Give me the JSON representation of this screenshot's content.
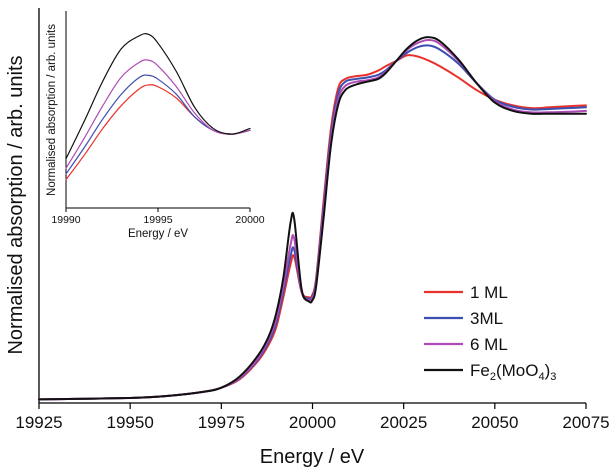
{
  "chart_data": [
    {
      "type": "line",
      "title": "",
      "xlabel": "Energy / eV",
      "ylabel": "Normalised absorption / arb. units",
      "xlim": [
        19925,
        20075
      ],
      "ylim": [
        0,
        1.42
      ],
      "xticks": [
        "19925",
        "19950",
        "19975",
        "20000",
        "20025",
        "20050",
        "20075"
      ],
      "grid": false,
      "legend_position": "bottom-right",
      "colors": {
        "1 ML": "#e8312a",
        "3ML": "#3b4fb0",
        "6 ML": "#b04ab5",
        "Fe2(MoO4)3": "#111111"
      },
      "series": [
        {
          "name": "1 ML",
          "color": "#e8312a",
          "x": [
            19925,
            19950,
            19960,
            19970,
            19975,
            19980,
            19985,
            19988,
            19990,
            19992,
            19994,
            19995,
            19997,
            19999,
            20000,
            20001,
            20003,
            20005,
            20007,
            20009,
            20012,
            20015,
            20018,
            20020,
            20023,
            20026,
            20029,
            20032,
            20035,
            20040,
            20045,
            20050,
            20055,
            20060,
            20065,
            20070,
            20075
          ],
          "y": [
            0.013,
            0.018,
            0.025,
            0.04,
            0.055,
            0.085,
            0.15,
            0.21,
            0.27,
            0.38,
            0.5,
            0.525,
            0.4,
            0.38,
            0.39,
            0.45,
            0.72,
            0.98,
            1.13,
            1.165,
            1.175,
            1.18,
            1.195,
            1.21,
            1.23,
            1.25,
            1.245,
            1.23,
            1.21,
            1.17,
            1.125,
            1.09,
            1.07,
            1.06,
            1.063,
            1.067,
            1.07
          ]
        },
        {
          "name": "3ML",
          "color": "#3b4fb0",
          "x": [
            19925,
            19950,
            19960,
            19970,
            19975,
            19980,
            19985,
            19988,
            19990,
            19992,
            19994,
            19995,
            19997,
            19999,
            20000,
            20001,
            20003,
            20005,
            20007,
            20009,
            20012,
            20015,
            20018,
            20020,
            20023,
            20026,
            20029,
            20032,
            20035,
            20040,
            20045,
            20050,
            20055,
            20060,
            20065,
            20070,
            20075
          ],
          "y": [
            0.013,
            0.018,
            0.025,
            0.04,
            0.055,
            0.088,
            0.155,
            0.22,
            0.285,
            0.4,
            0.53,
            0.55,
            0.4,
            0.375,
            0.385,
            0.44,
            0.7,
            0.96,
            1.11,
            1.155,
            1.165,
            1.17,
            1.18,
            1.195,
            1.23,
            1.26,
            1.28,
            1.285,
            1.27,
            1.22,
            1.15,
            1.09,
            1.065,
            1.055,
            1.057,
            1.06,
            1.063
          ]
        },
        {
          "name": "6 ML",
          "color": "#b04ab5",
          "x": [
            19925,
            19950,
            19960,
            19970,
            19975,
            19980,
            19985,
            19988,
            19990,
            19992,
            19994,
            19995,
            19997,
            19999,
            20000,
            20001,
            20003,
            20005,
            20007,
            20009,
            20012,
            20015,
            20018,
            20020,
            20023,
            20026,
            20029,
            20032,
            20035,
            20040,
            20045,
            20050,
            20055,
            20060,
            20065,
            20070,
            20075
          ],
          "y": [
            0.013,
            0.018,
            0.025,
            0.04,
            0.055,
            0.09,
            0.16,
            0.23,
            0.3,
            0.42,
            0.57,
            0.59,
            0.4,
            0.37,
            0.38,
            0.43,
            0.68,
            0.94,
            1.09,
            1.14,
            1.155,
            1.16,
            1.17,
            1.19,
            1.23,
            1.27,
            1.295,
            1.305,
            1.29,
            1.23,
            1.15,
            1.085,
            1.055,
            1.045,
            1.045,
            1.047,
            1.05
          ]
        },
        {
          "name": "Fe2(MoO4)3",
          "color": "#111111",
          "x": [
            19925,
            19950,
            19960,
            19970,
            19975,
            19980,
            19985,
            19988,
            19990,
            19992,
            19994,
            19995,
            19997,
            19999,
            20000,
            20001,
            20003,
            20005,
            20007,
            20009,
            20012,
            20015,
            20018,
            20020,
            20023,
            20026,
            20029,
            20032,
            20035,
            20040,
            20045,
            20050,
            20055,
            20060,
            20065,
            20070,
            20075
          ],
          "y": [
            0.013,
            0.018,
            0.025,
            0.04,
            0.055,
            0.095,
            0.17,
            0.24,
            0.32,
            0.45,
            0.65,
            0.66,
            0.41,
            0.365,
            0.37,
            0.42,
            0.66,
            0.92,
            1.07,
            1.125,
            1.145,
            1.155,
            1.165,
            1.185,
            1.23,
            1.275,
            1.305,
            1.315,
            1.3,
            1.235,
            1.15,
            1.08,
            1.05,
            1.04,
            1.04,
            1.04,
            1.04
          ]
        }
      ],
      "legend": {
        "items": [
          {
            "label": "1 ML",
            "color": "#e8312a"
          },
          {
            "label": "3ML",
            "color": "#3b4fb0"
          },
          {
            "label": "6 ML",
            "color": "#b04ab5"
          },
          {
            "label_parts": [
              "Fe",
              "2",
              "(MoO",
              "4",
              ")",
              "3"
            ],
            "color": "#111111"
          }
        ]
      }
    },
    {
      "type": "line",
      "title": "",
      "xlabel": "Energy / eV",
      "ylabel": "Normalised absorption / arb. units",
      "xlim": [
        19990,
        20000
      ],
      "ylim": [
        0.2,
        0.72
      ],
      "xticks": [
        "19990",
        "19995",
        "20000"
      ],
      "grid": false,
      "series": [
        {
          "name": "1 ML",
          "color": "#e8312a",
          "x": [
            19990,
            19991,
            19992,
            19993,
            19994,
            19994.5,
            19995,
            19996,
            19997,
            19998,
            19999,
            20000
          ],
          "y": [
            0.275,
            0.34,
            0.41,
            0.47,
            0.515,
            0.525,
            0.52,
            0.49,
            0.44,
            0.405,
            0.395,
            0.405
          ]
        },
        {
          "name": "3ML",
          "color": "#3b4fb0",
          "x": [
            19990,
            19991,
            19992,
            19993,
            19994,
            19994.5,
            19995,
            19996,
            19997,
            19998,
            19999,
            20000
          ],
          "y": [
            0.29,
            0.36,
            0.435,
            0.5,
            0.545,
            0.55,
            0.54,
            0.5,
            0.44,
            0.405,
            0.395,
            0.405
          ]
        },
        {
          "name": "6 ML",
          "color": "#b04ab5",
          "x": [
            19990,
            19991,
            19992,
            19993,
            19994,
            19994.5,
            19995,
            19996,
            19997,
            19998,
            19999,
            20000
          ],
          "y": [
            0.305,
            0.385,
            0.47,
            0.545,
            0.585,
            0.59,
            0.575,
            0.52,
            0.45,
            0.405,
            0.395,
            0.405
          ]
        },
        {
          "name": "Fe2(MoO4)3",
          "color": "#111111",
          "x": [
            19990,
            19991,
            19992,
            19993,
            19994,
            19994.5,
            19995,
            19996,
            19997,
            19998,
            19999,
            20000
          ],
          "y": [
            0.33,
            0.43,
            0.535,
            0.62,
            0.655,
            0.658,
            0.635,
            0.56,
            0.465,
            0.41,
            0.395,
            0.41
          ]
        }
      ]
    }
  ]
}
